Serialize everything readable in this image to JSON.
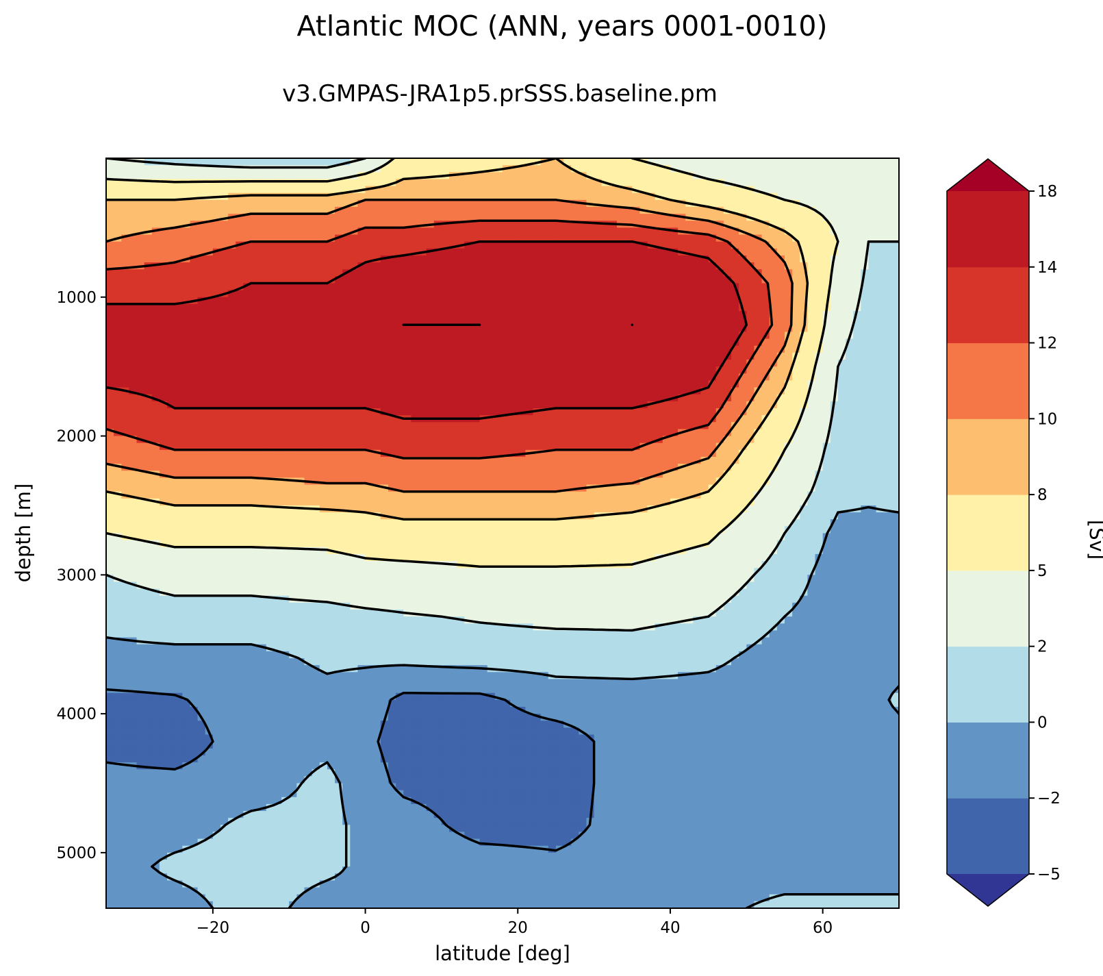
{
  "chart_data": {
    "type": "contourf",
    "title": "Atlantic MOC (ANN, years 0001-0010)",
    "subtitle": "v3.GMPAS-JRA1p5.prSSS.baseline.pm",
    "xlabel": "latitude [deg]",
    "ylabel": "depth [m]",
    "xlim": [
      -34,
      70
    ],
    "ylim": [
      5400,
      0
    ],
    "x_ticks": [
      -20,
      0,
      20,
      40,
      60
    ],
    "x_tick_labels": [
      "−20",
      "0",
      "20",
      "40",
      "60"
    ],
    "y_ticks": [
      1000,
      2000,
      3000,
      4000,
      5000
    ],
    "y_tick_labels": [
      "1000",
      "2000",
      "3000",
      "4000",
      "5000"
    ],
    "colorbar": {
      "label": "[Sv]",
      "levels": [
        -5,
        -2,
        0,
        2,
        5,
        8,
        10,
        12,
        14,
        18
      ],
      "tick_labels": [
        "−5",
        "−2",
        "0",
        "2",
        "5",
        "8",
        "10",
        "12",
        "14",
        "18"
      ],
      "colors": [
        "#4065ab",
        "#6295c5",
        "#b3dce9",
        "#e9f4e3",
        "#fff2a8",
        "#fdbf6f",
        "#f57748",
        "#d7342a",
        "#be1a24"
      ],
      "extend_under_color": "#313695",
      "extend_over_color": "#a50026"
    },
    "depth_grid": [
      0,
      300,
      600,
      900,
      1200,
      1500,
      1800,
      2100,
      2400,
      2700,
      3000,
      3300,
      3600,
      3900,
      4200,
      4500,
      4800,
      5100,
      5400
    ],
    "profiles": [
      {
        "lat": -34,
        "values": [
          2,
          8,
          10,
          13,
          15,
          15,
          13,
          11,
          8,
          5,
          2,
          0.5,
          -0.5,
          -2.5,
          -2.5,
          -1.5,
          -1,
          -1,
          -1
        ]
      },
      {
        "lat": -25,
        "values": [
          1,
          8,
          11,
          13,
          15,
          15,
          14,
          12,
          9,
          6,
          3,
          1,
          -0.5,
          -2.2,
          -3,
          -1.5,
          -1,
          0.5,
          -1
        ]
      },
      {
        "lat": -15,
        "values": [
          0,
          9,
          12,
          14,
          15,
          15.5,
          14,
          12,
          9,
          6,
          3,
          1,
          -0.5,
          -1,
          -1,
          -1,
          0.5,
          1,
          1
        ]
      },
      {
        "lat": -5,
        "values": [
          0,
          9,
          12,
          14,
          16,
          16,
          14,
          12,
          9.5,
          6,
          3.5,
          1.2,
          0.3,
          -0.5,
          -0.5,
          0.5,
          0.5,
          0.5,
          -1
        ]
      },
      {
        "lat": 0,
        "values": [
          2,
          10,
          13,
          15,
          16,
          16,
          14,
          12,
          9.5,
          6.5,
          4,
          1.5,
          0.3,
          -1,
          -1.5,
          -1,
          -0.5,
          -0.5,
          -0.5
        ]
      },
      {
        "lat": 5,
        "values": [
          6,
          10,
          13,
          16,
          18,
          16.5,
          14.5,
          12.5,
          10,
          7,
          4,
          1.8,
          0.5,
          -2.5,
          -3,
          -2.5,
          -1,
          -0.5,
          -0.5
        ]
      },
      {
        "lat": 15,
        "values": [
          7,
          10,
          14,
          16.5,
          18,
          16.5,
          14.5,
          12.5,
          10,
          7,
          4.5,
          2.2,
          0.8,
          -2.5,
          -3,
          -3,
          -2.8,
          -1,
          -0.5
        ]
      },
      {
        "lat": 25,
        "values": [
          8,
          10,
          14,
          16,
          17,
          16,
          14,
          12,
          10,
          7,
          4.5,
          2.5,
          0.8,
          -1,
          -3,
          -3,
          -2.8,
          -1.5,
          -1
        ]
      },
      {
        "lat": 35,
        "values": [
          5,
          9,
          14,
          16.5,
          18,
          16.5,
          14,
          12,
          9.5,
          6.5,
          4.5,
          2.5,
          1,
          -1,
          -1,
          -1,
          -1,
          -1,
          -1
        ]
      },
      {
        "lat": 45,
        "values": [
          3,
          7,
          13,
          15.5,
          17,
          15,
          13,
          10.5,
          8,
          5.5,
          3.5,
          2,
          0.5,
          -1,
          -1,
          -1,
          -1,
          -1,
          -0.5
        ]
      },
      {
        "lat": 55,
        "values": [
          2,
          5,
          9,
          11,
          11,
          9,
          7,
          5,
          3.5,
          2,
          1,
          0,
          -1,
          -1,
          -1,
          -1,
          -1,
          -1,
          0.5
        ]
      },
      {
        "lat": 62,
        "values": [
          2,
          4,
          5,
          4,
          3,
          2,
          1.5,
          1,
          0.5,
          -0.5,
          -1,
          -1,
          -1,
          -1,
          -1,
          -1,
          -1,
          -1,
          0.5
        ]
      },
      {
        "lat": 66,
        "values": [
          3,
          2,
          2,
          1.5,
          1,
          0.5,
          0.5,
          0.5,
          0.3,
          -0.5,
          -1,
          -1,
          -1,
          -1,
          -1,
          -1,
          -1,
          -1,
          0.5
        ]
      },
      {
        "lat": 70,
        "values": [
          2,
          2,
          2,
          1,
          1,
          1,
          1,
          1,
          0.5,
          -0.5,
          -1,
          -1,
          -1,
          0.5,
          -1,
          -1,
          -1,
          -1,
          0.5
        ]
      }
    ]
  }
}
